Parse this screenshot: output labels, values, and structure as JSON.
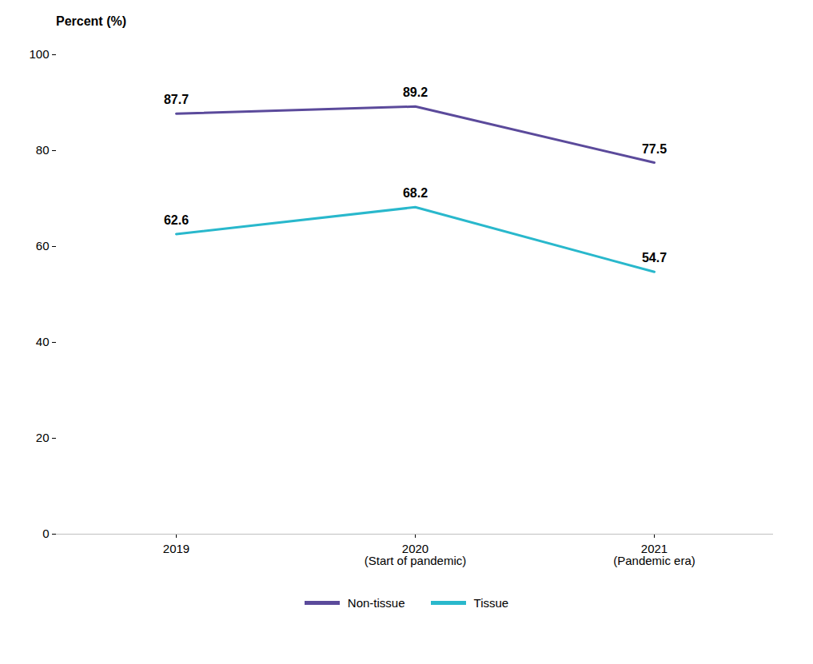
{
  "chart_data": {
    "type": "line",
    "ylabel": "Percent (%)",
    "categories": [
      "2019",
      "2020\n(Start of pandemic)",
      "2021\n(Pandemic era)"
    ],
    "series": [
      {
        "name": "Non-tissue",
        "color": "#5b4a9b",
        "values": [
          87.7,
          89.2,
          77.5
        ]
      },
      {
        "name": "Tissue",
        "color": "#29b8cc",
        "values": [
          62.6,
          68.2,
          54.7
        ]
      }
    ],
    "ylim": [
      0,
      100
    ],
    "yticks": [
      0,
      20,
      40,
      60,
      80,
      100
    ],
    "grid": false,
    "legend": "bottom",
    "data_labels": true
  }
}
